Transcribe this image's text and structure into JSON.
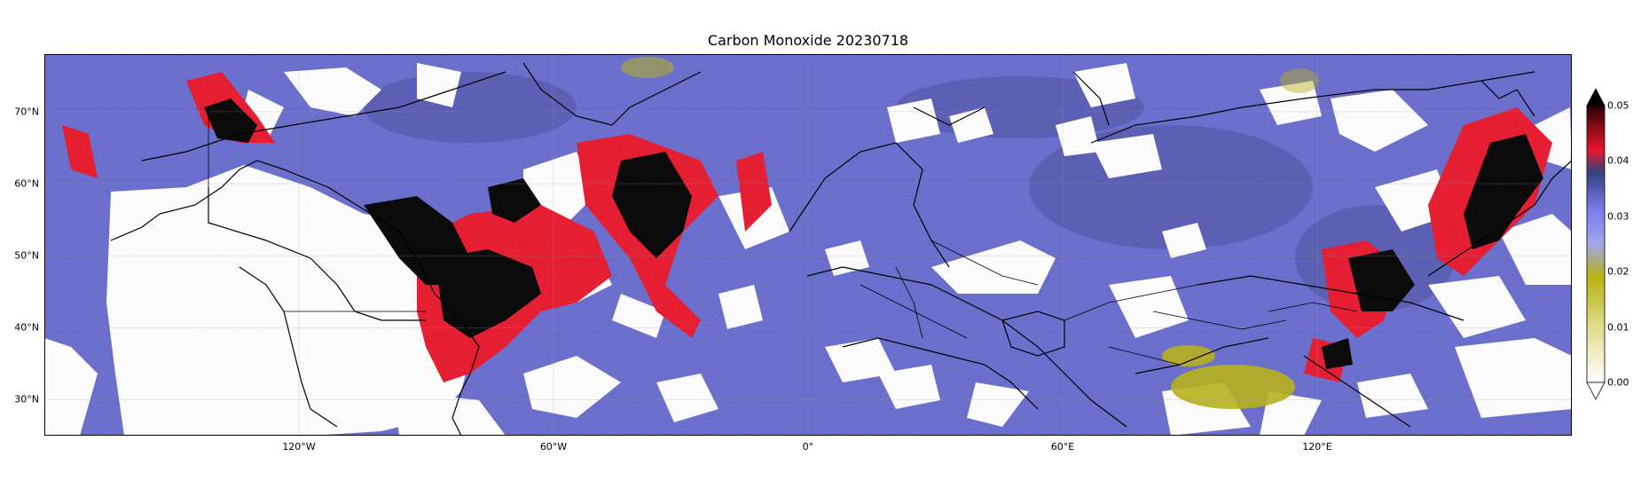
{
  "title": "Carbon Monoxide 20230718",
  "map": {
    "projection": "PlateCarree",
    "extent_lon": [
      -180,
      180
    ],
    "extent_lat": [
      25,
      78
    ],
    "longitude_ticks": [
      {
        "value": -120,
        "label": "120°W"
      },
      {
        "value": -60,
        "label": "60°W"
      },
      {
        "value": 0,
        "label": "0°"
      },
      {
        "value": 60,
        "label": "60°E"
      },
      {
        "value": 120,
        "label": "120°E"
      }
    ],
    "latitude_ticks": [
      {
        "value": 70,
        "label": "70°N"
      },
      {
        "value": 60,
        "label": "60°N"
      },
      {
        "value": 50,
        "label": "50°N"
      },
      {
        "value": 40,
        "label": "40°N"
      },
      {
        "value": 30,
        "label": "30°N"
      }
    ],
    "gridlines": true,
    "coastlines": true,
    "borders": true
  },
  "colorbar": {
    "ticks": [
      "0.05",
      "0.04",
      "0.03",
      "0.02",
      "0.01",
      "0.00"
    ],
    "range": [
      0,
      0.05
    ],
    "extend": "both",
    "placement": "right",
    "colors": [
      "#ffffff",
      "#b8b212",
      "#7d7df0",
      "#33427e",
      "#e8152a",
      "#000000"
    ]
  },
  "colors": {
    "background_co": "#6f72d8",
    "high_co": "#e8152a",
    "extreme_co": "#000000",
    "low_co": "#b8b212",
    "no_data": "#ffffff"
  }
}
